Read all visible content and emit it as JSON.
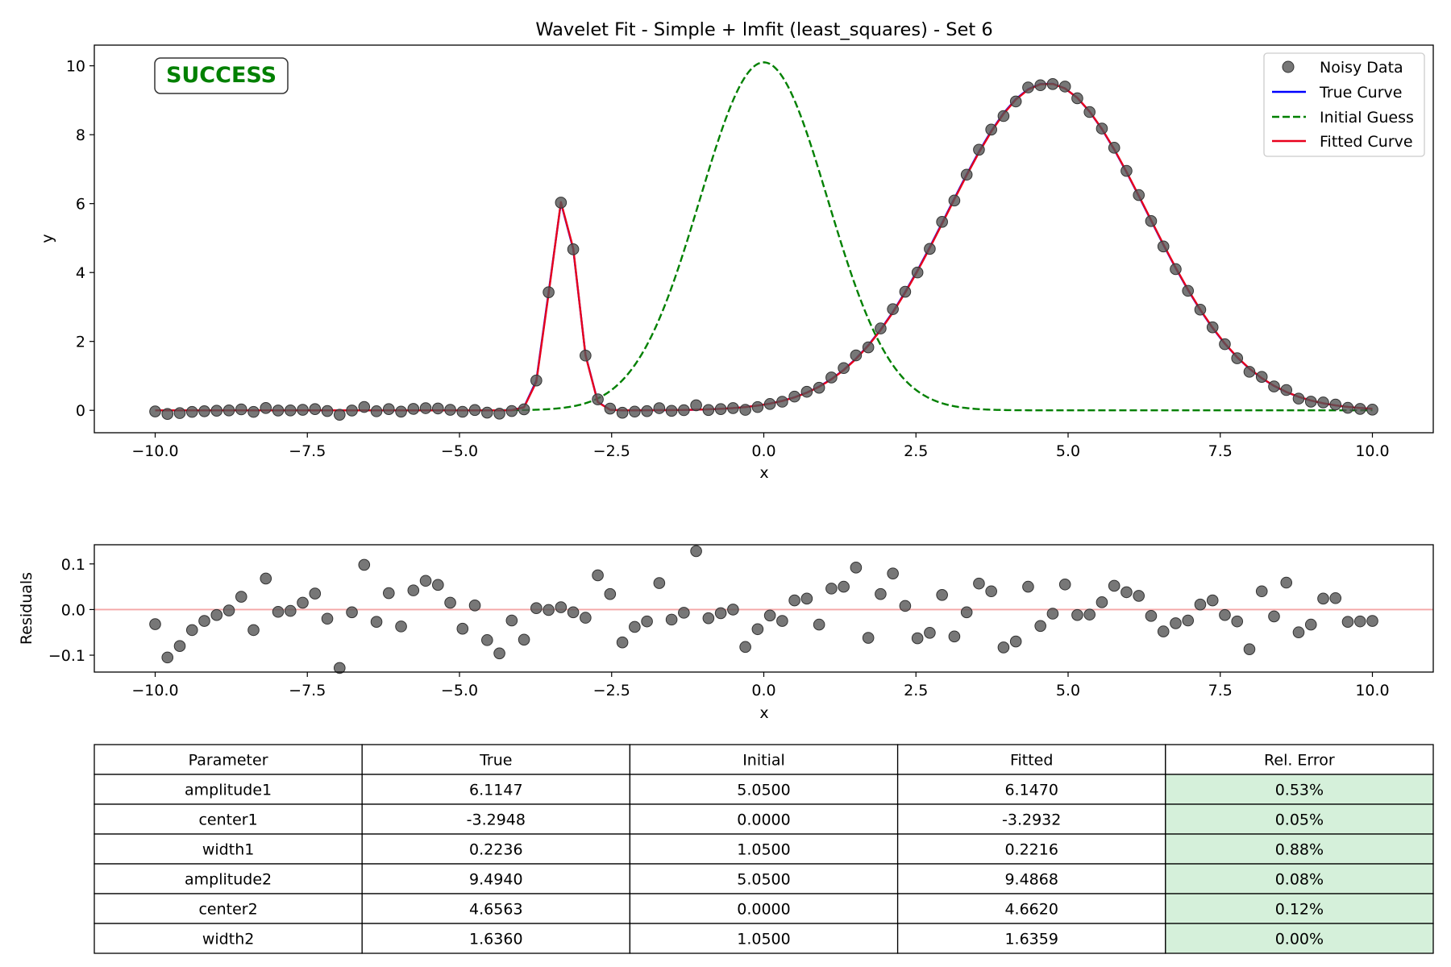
{
  "chart_data": [
    {
      "type": "line",
      "title": "Wavelet Fit - Simple + lmfit (least_squares) - Set 6",
      "xlabel": "x",
      "ylabel": "y",
      "xlim": [
        -11.0,
        11.0
      ],
      "ylim": [
        -0.65,
        10.6
      ],
      "xticks": [
        -10.0,
        -7.5,
        -5.0,
        -2.5,
        0.0,
        2.5,
        5.0,
        7.5,
        10.0
      ],
      "xtick_labels": [
        "−10.0",
        "−7.5",
        "−5.0",
        "−2.5",
        "0.0",
        "2.5",
        "5.0",
        "7.5",
        "10.0"
      ],
      "yticks": [
        0,
        2,
        4,
        6,
        8,
        10
      ],
      "ytick_labels": [
        "0",
        "2",
        "4",
        "6",
        "8",
        "10"
      ],
      "grid": false,
      "legend_position": "top-right",
      "status_badge": {
        "text": "SUCCESS",
        "color": "#008000"
      },
      "x_grid": {
        "start": -10,
        "end": 10,
        "count": 100
      },
      "series": [
        {
          "name": "Noisy Data",
          "style": "markers",
          "color": "#555555",
          "model": {
            "amplitude1": 6.1147,
            "center1": -3.2948,
            "width1": 0.2236,
            "amplitude2": 9.494,
            "center2": 4.6563,
            "width2": 1.636
          },
          "residual_offsets": true
        },
        {
          "name": "True Curve",
          "style": "solid",
          "color": "#0000ff",
          "model": {
            "amplitude1": 6.1147,
            "center1": -3.2948,
            "width1": 0.2236,
            "amplitude2": 9.494,
            "center2": 4.6563,
            "width2": 1.636
          }
        },
        {
          "name": "Initial Guess",
          "style": "dashed",
          "color": "#008000",
          "model": {
            "amplitude1": 5.05,
            "center1": 0.0,
            "width1": 1.05,
            "amplitude2": 5.05,
            "center2": 0.0,
            "width2": 1.05
          }
        },
        {
          "name": "Fitted Curve",
          "style": "solid",
          "color": "#e8001c",
          "model": {
            "amplitude1": 6.147,
            "center1": -3.2932,
            "width1": 0.2216,
            "amplitude2": 9.4868,
            "center2": 4.662,
            "width2": 1.6359
          }
        }
      ]
    },
    {
      "type": "scatter",
      "title": "",
      "xlabel": "x",
      "ylabel": "Residuals",
      "xlim": [
        -11.0,
        11.0
      ],
      "ylim": [
        -0.137,
        0.142
      ],
      "xticks": [
        -10.0,
        -7.5,
        -5.0,
        -2.5,
        0.0,
        2.5,
        5.0,
        7.5,
        10.0
      ],
      "xtick_labels": [
        "−10.0",
        "−7.5",
        "−5.0",
        "−2.5",
        "0.0",
        "2.5",
        "5.0",
        "7.5",
        "10.0"
      ],
      "yticks": [
        -0.1,
        0.0,
        0.1
      ],
      "ytick_labels": [
        "−0.1",
        "0.0",
        "0.1"
      ],
      "zero_line_color": "#f4a6a6",
      "point_color": "#555555",
      "x": {
        "start": -10,
        "end": 10,
        "count": 100
      },
      "values": [
        -0.032,
        -0.105,
        -0.08,
        -0.045,
        -0.025,
        -0.012,
        -0.002,
        0.028,
        -0.045,
        0.068,
        -0.005,
        -0.003,
        0.015,
        0.035,
        -0.02,
        -0.128,
        -0.006,
        0.098,
        -0.027,
        0.036,
        -0.037,
        0.042,
        0.063,
        0.054,
        0.015,
        -0.042,
        0.009,
        -0.067,
        -0.096,
        -0.024,
        -0.066,
        0.003,
        -0.001,
        0.005,
        -0.006,
        -0.018,
        0.075,
        0.034,
        -0.072,
        -0.038,
        -0.026,
        0.058,
        -0.022,
        -0.007,
        0.128,
        -0.019,
        -0.008,
        0.0,
        -0.082,
        -0.043,
        -0.013,
        -0.025,
        0.02,
        0.024,
        -0.033,
        0.046,
        0.05,
        0.092,
        -0.062,
        0.034,
        0.079,
        0.008,
        -0.063,
        -0.051,
        0.032,
        -0.059,
        -0.006,
        0.057,
        0.04,
        -0.083,
        -0.07,
        0.05,
        -0.036,
        -0.009,
        0.055,
        -0.012,
        -0.011,
        0.016,
        0.052,
        0.038,
        0.03,
        -0.014,
        -0.048,
        -0.03,
        -0.024,
        0.011,
        0.02,
        -0.012,
        -0.026,
        -0.087,
        0.04,
        -0.015,
        0.059,
        -0.05,
        -0.033,
        0.024,
        0.025,
        -0.027,
        -0.026,
        -0.025
      ]
    },
    {
      "type": "table",
      "columns": [
        "Parameter",
        "True",
        "Initial",
        "Fitted",
        "Rel. Error"
      ],
      "rows": [
        [
          "amplitude1",
          "6.1147",
          "5.0500",
          "6.1470",
          "0.53%"
        ],
        [
          "center1",
          "-3.2948",
          "0.0000",
          "-3.2932",
          "0.05%"
        ],
        [
          "width1",
          "0.2236",
          "1.0500",
          "0.2216",
          "0.88%"
        ],
        [
          "amplitude2",
          "9.4940",
          "5.0500",
          "9.4868",
          "0.08%"
        ],
        [
          "center2",
          "4.6563",
          "0.0000",
          "4.6620",
          "0.12%"
        ],
        [
          "width2",
          "1.6360",
          "1.0500",
          "1.6359",
          "0.00%"
        ]
      ],
      "error_cell_color": "#d5f0da"
    }
  ]
}
